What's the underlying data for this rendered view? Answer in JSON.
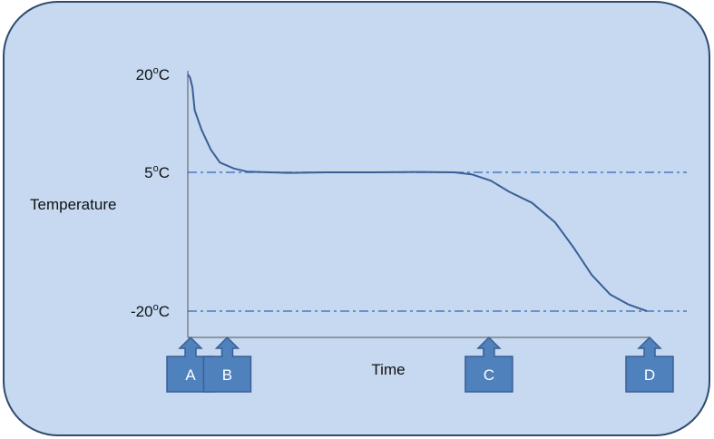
{
  "diagram": {
    "colors": {
      "panel_fill": "#c6d9f1",
      "panel_stroke": "#2f4a6e",
      "curve": "#3a5f96",
      "reference_line": "#4a7ac0",
      "marker_fill": "#4f81bd",
      "marker_stroke": "#3a5f96",
      "marker_text": "#ffffff"
    },
    "y_axis": {
      "title": "Temperature",
      "ticks": [
        {
          "value": 20,
          "base": "20",
          "sup": "o",
          "unit": "C"
        },
        {
          "value": 5,
          "base": "5",
          "sup": "o",
          "unit": "C"
        },
        {
          "value": -20,
          "base": "-20",
          "sup": "o",
          "unit": "C"
        }
      ]
    },
    "x_axis": {
      "title": "Time"
    },
    "reference_lines": [
      5,
      -20
    ],
    "markers": [
      {
        "label": "A",
        "x": 0
      },
      {
        "label": "B",
        "x": 8
      },
      {
        "label": "C",
        "x": 65
      },
      {
        "label": "D",
        "x": 100
      }
    ],
    "curve": [
      [
        0,
        20
      ],
      [
        0.5,
        19.5
      ],
      [
        1,
        18
      ],
      [
        1.5,
        14.5
      ],
      [
        3,
        11.5
      ],
      [
        5,
        8.5
      ],
      [
        7,
        6.5
      ],
      [
        10,
        5.6
      ],
      [
        13,
        5.1
      ],
      [
        18,
        5.0
      ],
      [
        22,
        4.9
      ],
      [
        30,
        5.0
      ],
      [
        40,
        5.0
      ],
      [
        50,
        5.05
      ],
      [
        58,
        5.0
      ],
      [
        62,
        4.6
      ],
      [
        66,
        3.5
      ],
      [
        70,
        1.5
      ],
      [
        75,
        -0.5
      ],
      [
        80,
        -4.0
      ],
      [
        84,
        -8.5
      ],
      [
        88,
        -13.5
      ],
      [
        92,
        -17.0
      ],
      [
        96,
        -18.8
      ],
      [
        100,
        -20
      ]
    ]
  }
}
